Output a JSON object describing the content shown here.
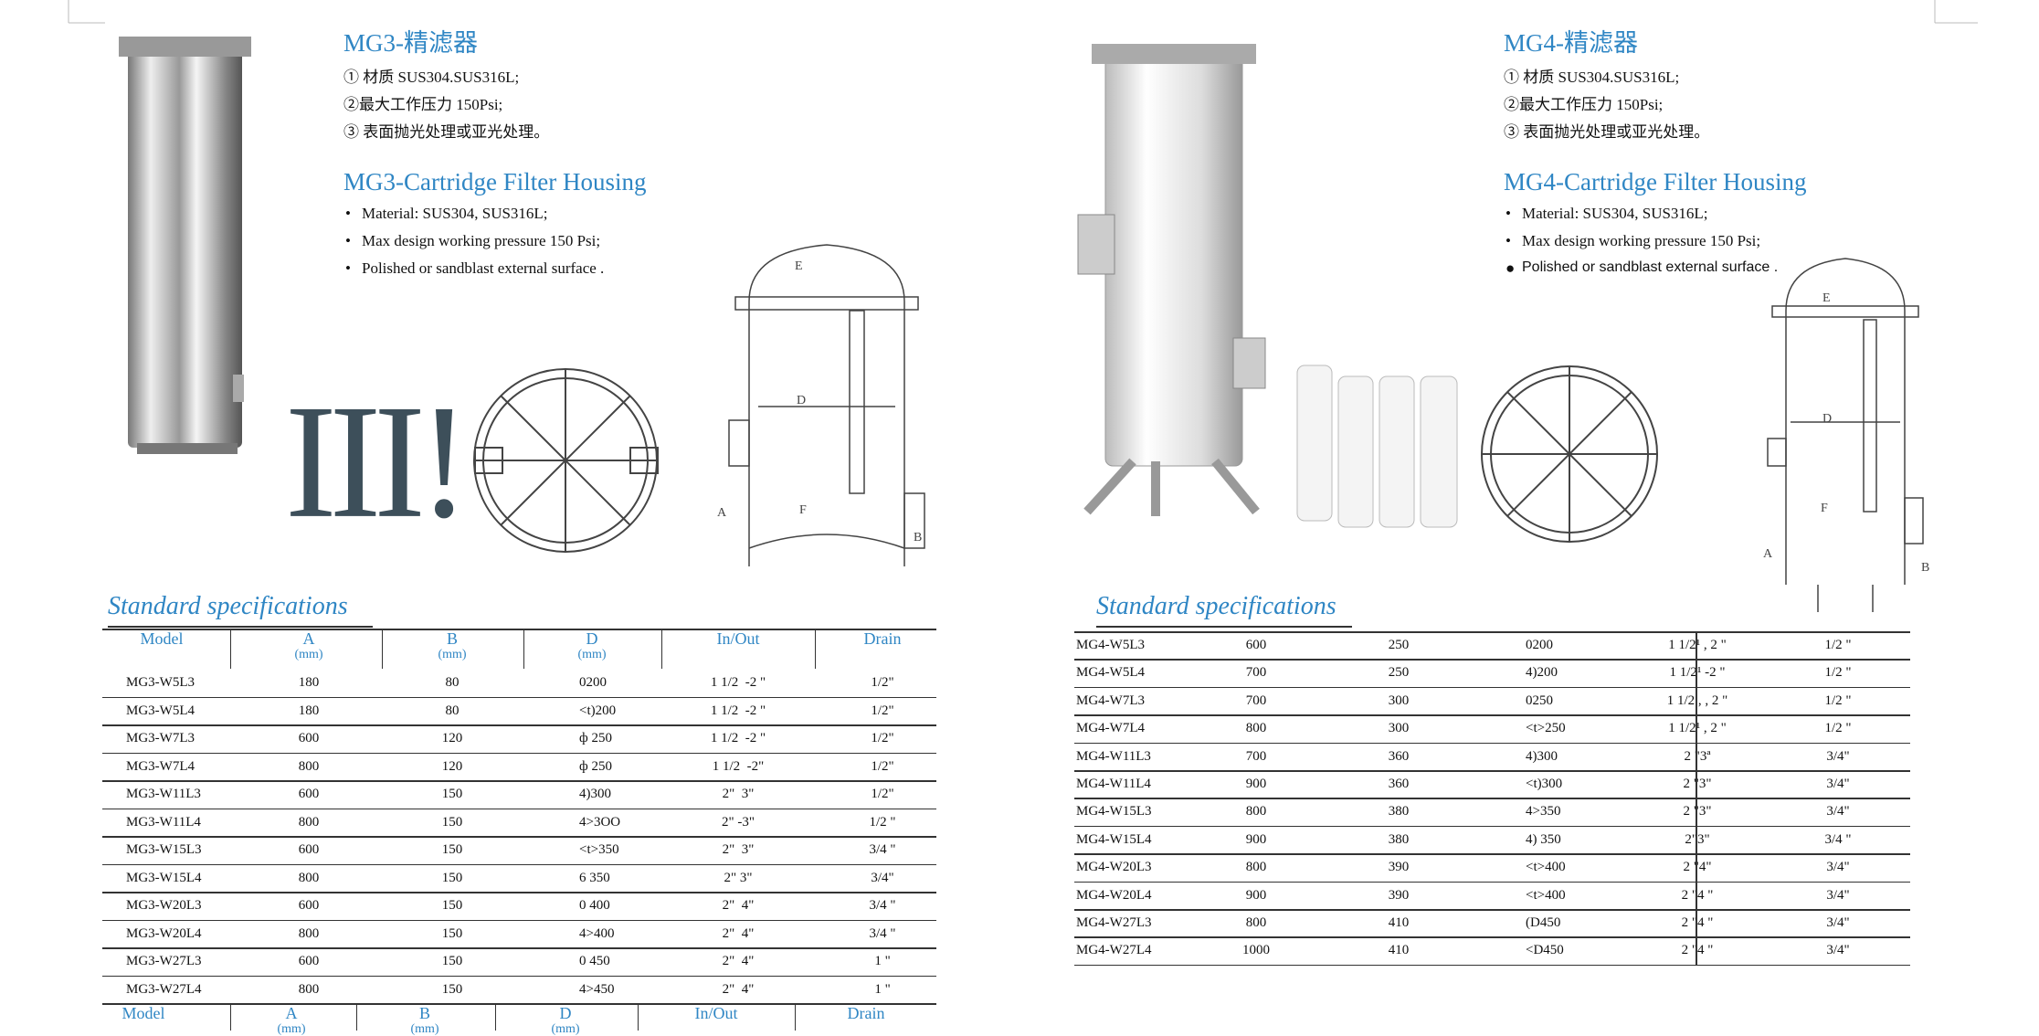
{
  "overlay_text": "III!",
  "sections": [
    {
      "title": "MG3-精滤器",
      "cn_points": [
        "① 材质 SUS304.SUS316L;",
        "②最大工作压力 150Psi;",
        "③ 表面抛光处理或亚光处理。"
      ],
      "en_title": "MG3-Cartridge Filter Housing",
      "en_points": [
        "Material: SUS304, SUS316L;",
        "Max design working pressure 150 Psi;",
        "Polished or sandblast external surface ."
      ],
      "drawing_labels": [
        "E",
        "D",
        "F",
        "A",
        "B"
      ],
      "spec_title": "Standard specifications",
      "table": {
        "header": [
          {
            "name": "Model"
          },
          {
            "name": "A",
            "unit": "(mm)"
          },
          {
            "name": "B",
            "unit": "(mm)"
          },
          {
            "name": "D",
            "unit": "(mm)"
          },
          {
            "name": "In/Out"
          },
          {
            "name": "Drain"
          }
        ],
        "rows": [
          [
            "MG3-W5L3",
            "180",
            "80",
            "0200",
            "1 1/2  -2 \"",
            "1/2\""
          ],
          [
            "MG3-W5L4",
            "180",
            "80",
            "<t)200",
            "1 1/2  -2 \"",
            "1/2\""
          ],
          [
            "MG3-W7L3",
            "600",
            "120",
            "ф 250",
            "1 1/2  -2 \"",
            "1/2\""
          ],
          [
            "MG3-W7L4",
            "800",
            "120",
            "ф 250",
            "1 1/2  -2\"",
            "1/2\""
          ],
          [
            "MG3-W11L3",
            "600",
            "150",
            "4)300",
            "2\"  3\"",
            "1/2\""
          ],
          [
            "MG3-W11L4",
            "800",
            "150",
            "4>3OO",
            "2\" -3\"",
            "1/2 \""
          ],
          [
            "MG3-W15L3",
            "600",
            "150",
            "<t>350",
            "2\"  3\"",
            "3/4 \""
          ],
          [
            "MG3-W15L4",
            "800",
            "150",
            "6 350",
            "2\" 3\"",
            "3/4\""
          ],
          [
            "MG3-W20L3",
            "600",
            "150",
            "0 400",
            "2\"  4\"",
            "3/4 \""
          ],
          [
            "MG3-W20L4",
            "800",
            "150",
            "4>400",
            "2\"  4\"",
            "3/4 \""
          ],
          [
            "MG3-W27L3",
            "600",
            "150",
            "0 450",
            "2\"  4\"",
            "1 \""
          ],
          [
            "MG3-W27L4",
            "800",
            "150",
            "4>450",
            "2\"  4\"",
            "1 \""
          ]
        ],
        "footer": [
          {
            "name": "Model"
          },
          {
            "name": "A",
            "unit": "(mm)"
          },
          {
            "name": "B",
            "unit": "(mm)"
          },
          {
            "name": "D",
            "unit": "(mm)"
          },
          {
            "name": "In/Out"
          },
          {
            "name": "Drain"
          }
        ]
      }
    },
    {
      "title": "MG4-精滤器",
      "cn_points": [
        "① 材质 SUS304.SUS316L;",
        "②最大工作压力 150Psi;",
        "③ 表面抛光处理或亚光处理。"
      ],
      "en_title": "MG4-Cartridge Filter Housing",
      "en_points": [
        "Material: SUS304, SUS316L;",
        "Max design working pressure 150 Psi;",
        "Polished or sandblast external surface ."
      ],
      "drawing_labels": [
        "E",
        "D",
        "F",
        "A",
        "B"
      ],
      "spec_title": "Standard specifications",
      "table": {
        "rows": [
          [
            "MG4-W5L3",
            "600",
            "250",
            "0200",
            "1 1/2¹ , 2 \"",
            "1/2 \""
          ],
          [
            "MG4-W5L4",
            "700",
            "250",
            "4)200",
            "1 1/2¹ -2 \"",
            "1/2 \""
          ],
          [
            "MG4-W7L3",
            "700",
            "300",
            "0250",
            "1 1/2 , , 2 \"",
            "1/2 \""
          ],
          [
            "MG4-W7L4",
            "800",
            "300",
            "<t>250",
            "1 1/2¹ , 2 \"",
            "1/2 \""
          ],
          [
            "MG4-W11L3",
            "700",
            "360",
            "4)300",
            "2 \"3ª",
            "3/4\""
          ],
          [
            "MG4-W11L4",
            "900",
            "360",
            "<t)300",
            "2 \"3\"",
            "3/4\""
          ],
          [
            "MG4-W15L3",
            "800",
            "380",
            "4>350",
            "2 \"3\"",
            "3/4\""
          ],
          [
            "MG4-W15L4",
            "900",
            "380",
            "4) 350",
            "2\"3\"",
            "3/4 \""
          ],
          [
            "MG4-W20L3",
            "800",
            "390",
            "<t>400",
            "2 \"4\"",
            "3/4\""
          ],
          [
            "MG4-W20L4",
            "900",
            "390",
            "<t>400",
            "2 \"4 \"",
            "3/4\""
          ],
          [
            "MG4-W27L3",
            "800",
            "410",
            "(D450",
            "2 \"4 \"",
            "3/4\""
          ],
          [
            "MG4-W27L4",
            "1000",
            "410",
            "<D450",
            "2 \"4 \"",
            "3/4\""
          ]
        ]
      }
    }
  ]
}
